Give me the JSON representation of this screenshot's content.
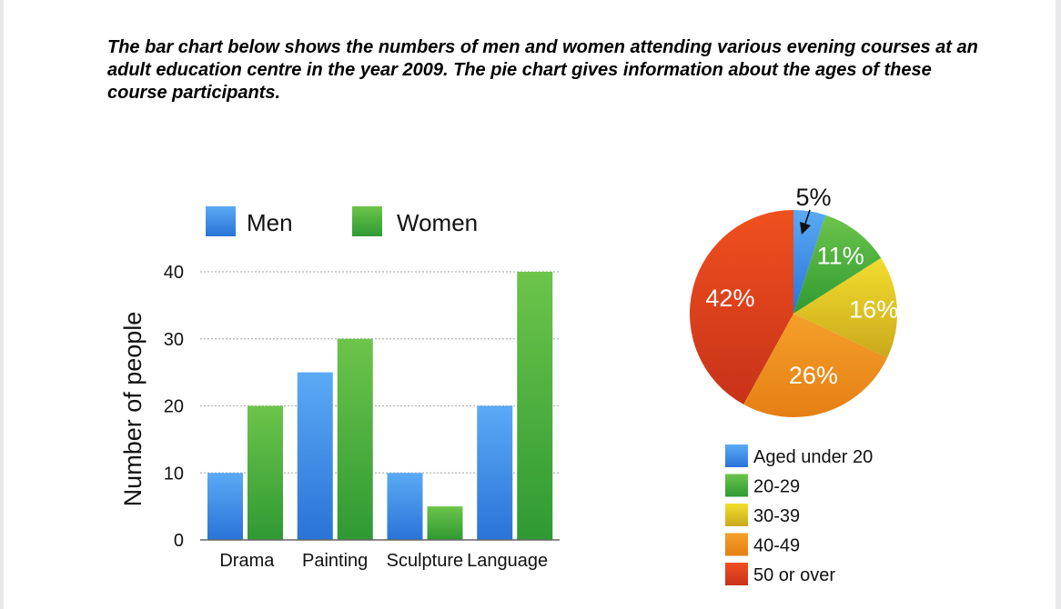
{
  "intro_text": "The bar chart below shows the numbers of men and women attending various evening courses at an adult education centre in the year 2009. The pie chart gives information about the ages of these course participants.",
  "colors": {
    "men": "#3a8fe6",
    "women": "#3fae3f",
    "under20": "#3a8fe6",
    "a20_29": "#36a93a",
    "a30_39": "#e3c81f",
    "a40_49": "#ee8c1e",
    "a50_over": "#e0401c"
  },
  "chart_data": [
    {
      "type": "bar",
      "title": "",
      "xlabel": "",
      "ylabel": "Number of people",
      "categories": [
        "Drama",
        "Painting",
        "Sculpture",
        "Language"
      ],
      "series": [
        {
          "name": "Men",
          "values": [
            10,
            25,
            10,
            20
          ]
        },
        {
          "name": "Women",
          "values": [
            20,
            30,
            5,
            40
          ]
        }
      ],
      "ylim": [
        0,
        40
      ],
      "yticks": [
        "0",
        "10",
        "20",
        "30",
        "40"
      ],
      "grid": true,
      "legend": "top"
    },
    {
      "type": "pie",
      "title": "",
      "slices": [
        {
          "name": "Aged under 20",
          "value": 5,
          "label": "5%"
        },
        {
          "name": "20-29",
          "value": 11,
          "label": "11%"
        },
        {
          "name": "30-39",
          "value": 16,
          "label": "16%"
        },
        {
          "name": "40-49",
          "value": 26,
          "label": "26%"
        },
        {
          "name": "50 or over",
          "value": 42,
          "label": "42%"
        }
      ],
      "legend": "bottom"
    }
  ]
}
